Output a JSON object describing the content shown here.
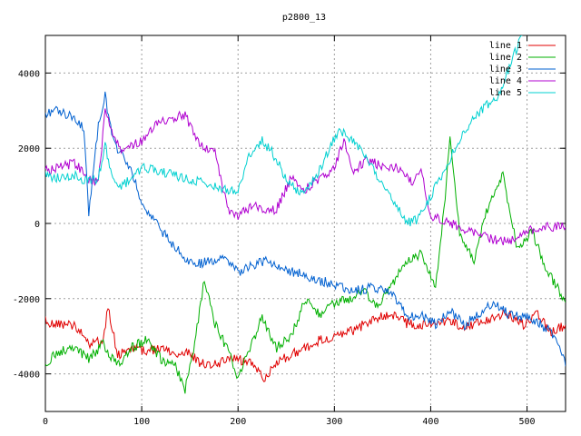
{
  "chart_data": {
    "type": "line",
    "title": "p2800_13",
    "xlabel": "",
    "ylabel": "",
    "xlim": [
      0,
      540
    ],
    "ylim": [
      -5000,
      5000
    ],
    "xticks": [
      0,
      100,
      200,
      300,
      400,
      500
    ],
    "yticks": [
      -4000,
      -2000,
      0,
      2000,
      4000
    ],
    "grid": true,
    "legend": "top-right",
    "series": [
      {
        "name": "line 1",
        "color": "#e00000",
        "x": [
          0,
          15,
          30,
          45,
          60,
          65,
          75,
          90,
          105,
          120,
          135,
          150,
          160,
          175,
          190,
          200,
          215,
          228,
          240,
          255,
          270,
          285,
          300,
          315,
          330,
          345,
          360,
          375,
          390,
          405,
          420,
          435,
          450,
          465,
          480,
          495,
          510,
          525,
          540
        ],
        "y": [
          -2600,
          -2700,
          -2700,
          -3200,
          -3100,
          -2250,
          -3500,
          -3300,
          -3400,
          -3300,
          -3450,
          -3450,
          -3700,
          -3750,
          -3650,
          -3600,
          -3750,
          -4150,
          -3700,
          -3500,
          -3300,
          -3100,
          -3050,
          -2900,
          -2700,
          -2500,
          -2400,
          -2650,
          -2700,
          -2650,
          -2600,
          -2800,
          -2600,
          -2500,
          -2400,
          -2700,
          -2400,
          -2900,
          -2700
        ]
      },
      {
        "name": "line 2",
        "color": "#00b000",
        "x": [
          0,
          15,
          30,
          45,
          60,
          75,
          90,
          105,
          120,
          135,
          145,
          155,
          165,
          175,
          190,
          200,
          210,
          225,
          240,
          255,
          270,
          285,
          300,
          315,
          330,
          345,
          360,
          375,
          390,
          405,
          415,
          420,
          430,
          445,
          460,
          475,
          490,
          505,
          520,
          540
        ],
        "y": [
          -3700,
          -3400,
          -3300,
          -3600,
          -3200,
          -3800,
          -3300,
          -3100,
          -3600,
          -3800,
          -4400,
          -3200,
          -1500,
          -2600,
          -3400,
          -4100,
          -3500,
          -2500,
          -3300,
          -3000,
          -2000,
          -2400,
          -2100,
          -2000,
          -1800,
          -2200,
          -1600,
          -1000,
          -800,
          -1700,
          700,
          2400,
          -300,
          -1000,
          500,
          1300,
          -700,
          -200,
          -1200,
          -2100
        ]
      },
      {
        "name": "line 3",
        "color": "#0060d0",
        "x": [
          0,
          10,
          20,
          30,
          40,
          45,
          55,
          62,
          70,
          80,
          90,
          100,
          115,
          130,
          145,
          155,
          170,
          185,
          200,
          215,
          230,
          240,
          260,
          280,
          300,
          320,
          340,
          360,
          375,
          390,
          405,
          420,
          435,
          450,
          465,
          480,
          500,
          515,
          530,
          540
        ],
        "y": [
          2900,
          3000,
          2900,
          2800,
          2500,
          300,
          2600,
          3400,
          2200,
          1800,
          1300,
          600,
          0,
          -500,
          -900,
          -1100,
          -1000,
          -900,
          -1300,
          -1100,
          -1000,
          -1200,
          -1300,
          -1500,
          -1600,
          -1800,
          -1700,
          -1800,
          -2500,
          -2400,
          -2700,
          -2300,
          -2700,
          -2400,
          -2100,
          -2400,
          -2500,
          -2700,
          -3000,
          -3800
        ]
      },
      {
        "name": "line 4",
        "color": "#b000d0",
        "x": [
          0,
          15,
          30,
          45,
          55,
          62,
          70,
          80,
          90,
          100,
          115,
          130,
          145,
          155,
          165,
          175,
          190,
          200,
          215,
          230,
          240,
          255,
          270,
          285,
          300,
          310,
          320,
          335,
          350,
          365,
          380,
          390,
          400,
          420,
          440,
          460,
          480,
          500,
          520,
          540
        ],
        "y": [
          1400,
          1500,
          1600,
          1200,
          1100,
          3000,
          2300,
          1900,
          2100,
          2200,
          2600,
          2800,
          2900,
          2300,
          2000,
          2000,
          300,
          200,
          500,
          300,
          400,
          1200,
          900,
          1200,
          1500,
          2200,
          1400,
          1700,
          1500,
          1500,
          1100,
          1400,
          200,
          0,
          -200,
          -400,
          -500,
          -200,
          -100,
          -100
        ]
      },
      {
        "name": "line 5",
        "color": "#00d0d0",
        "x": [
          0,
          15,
          30,
          45,
          55,
          62,
          70,
          80,
          90,
          100,
          115,
          130,
          145,
          160,
          175,
          190,
          200,
          210,
          225,
          235,
          250,
          265,
          280,
          295,
          305,
          320,
          335,
          350,
          365,
          375,
          385,
          395,
          410,
          425,
          440,
          455,
          470,
          485,
          495
        ],
        "y": [
          1300,
          1200,
          1300,
          1100,
          1200,
          2100,
          1100,
          1000,
          1200,
          1500,
          1400,
          1300,
          1200,
          1100,
          1000,
          900,
          800,
          1700,
          2200,
          1900,
          1200,
          800,
          1200,
          2000,
          2500,
          2200,
          1700,
          1000,
          500,
          0,
          100,
          500,
          1200,
          2000,
          2600,
          3100,
          3400,
          4400,
          5000
        ]
      }
    ]
  }
}
